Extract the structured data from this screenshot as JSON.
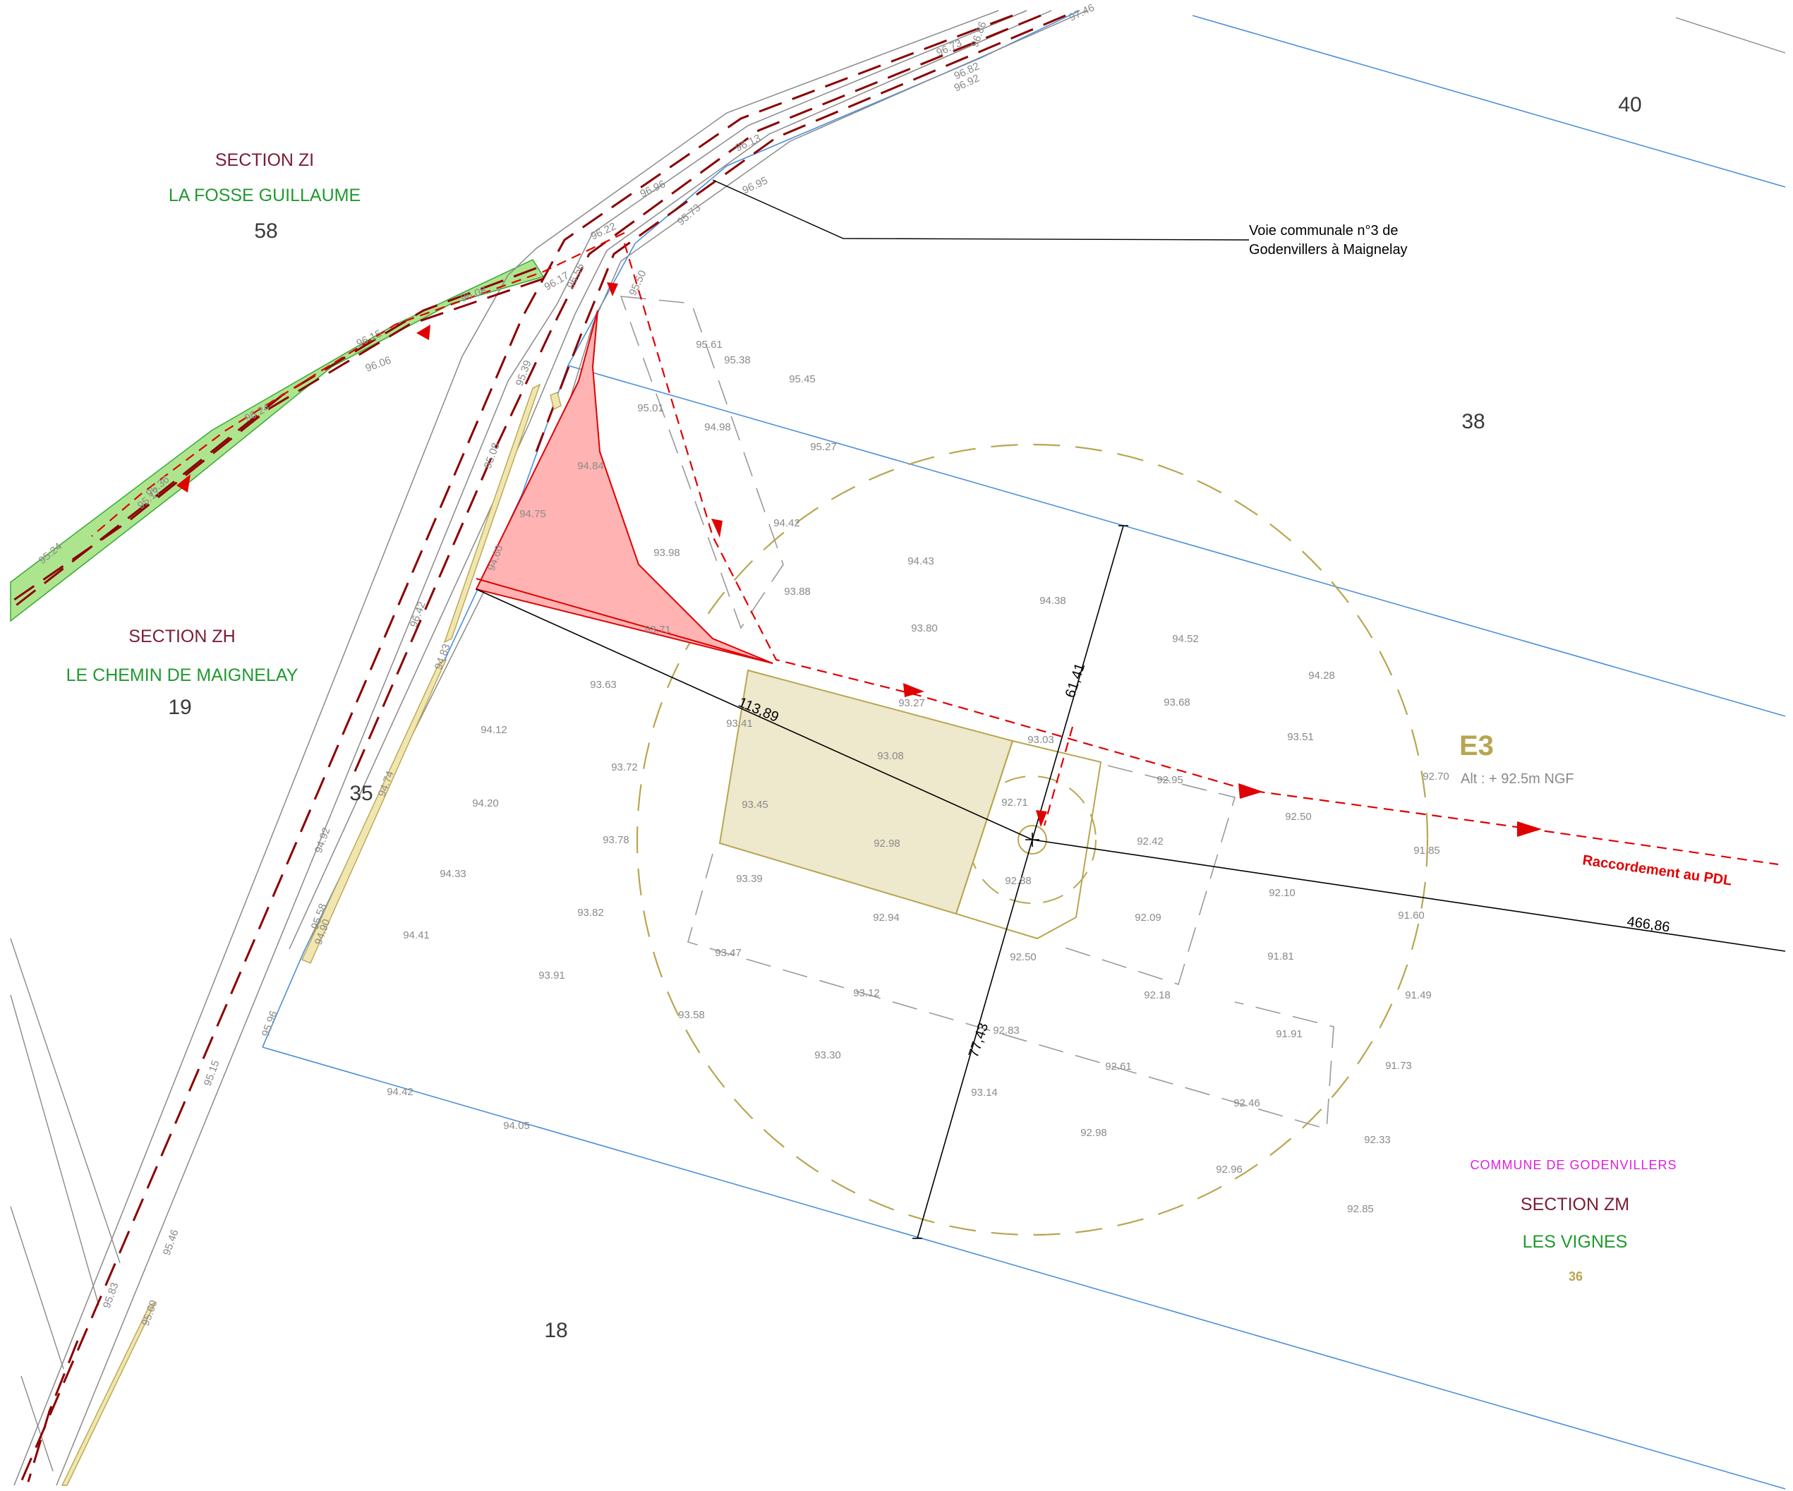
{
  "colors": {
    "section": "#7a1c34",
    "lieu_dit": "#1f9a2e",
    "commune": "#e020e0",
    "parcel_line": "#4a90d9",
    "road_dash": "#8b0000",
    "route": "#e00000",
    "platform": "#b7a650",
    "zone_red": "#ff9a9a",
    "green_strip": "#9fe07a"
  },
  "labels": {
    "section_zi": "SECTION ZI",
    "lieu_zi": "LA FOSSE GUILLAUME",
    "parcel_58": "58",
    "section_zh": "SECTION ZH",
    "lieu_zh": "LE CHEMIN DE MAIGNELAY",
    "parcel_19": "19",
    "parcel_35": "35",
    "parcel_40": "40",
    "parcel_38": "38",
    "parcel_18": "18",
    "road_line1": "Voie communale n°3 de",
    "road_line2": "Godenvillers à Maignelay",
    "turbine": "E3",
    "altitude": "Alt : + 92.5m NGF",
    "connection": "Raccordement au PDL",
    "commune": "COMMUNE DE GODENVILLERS",
    "section_zm": "SECTION ZM",
    "lieu_zm": "LES VIGNES",
    "parcel_36": "36"
  },
  "dimensions": {
    "d1": "113,89",
    "d2": "61,41",
    "d3": "77,43",
    "d4": "466,86"
  },
  "spot_heights": [
    "95.61",
    "95.38",
    "95.45",
    "95.01",
    "94.98",
    "95.27",
    "94.84",
    "94.75",
    "94.42",
    "93.98",
    "94.43",
    "94.38",
    "93.88",
    "93.80",
    "94.52",
    "94.28",
    "93.71",
    "93.63",
    "93.27",
    "93.41",
    "93.68",
    "94.12",
    "93.03",
    "93.51",
    "93.72",
    "93.08",
    "92.95",
    "92.70",
    "94.20",
    "93.45",
    "92.71",
    "92.50",
    "94.33",
    "93.78",
    "92.98",
    "92.42",
    "91.85",
    "93.39",
    "92.88",
    "93.82",
    "92.94",
    "92.09",
    "92.10",
    "91.60",
    "94.41",
    "93.47",
    "92.50",
    "91.81",
    "93.91",
    "93.12",
    "92.18",
    "91.49",
    "93.58",
    "92.83",
    "91.91",
    "93.30",
    "92.61",
    "91.73",
    "93.14",
    "92.46",
    "92.98",
    "92.33",
    "92.96",
    "92.85",
    "94.42",
    "94.05"
  ],
  "road_spots": [
    "96.73",
    "96.86",
    "96.82",
    "96.92",
    "97.46",
    "96.13",
    "96.96",
    "95.73",
    "96.95",
    "96.22",
    "95.50",
    "96.56",
    "96.08",
    "96.15",
    "96.06",
    "96.24",
    "96.36",
    "95.17",
    "95.24",
    "95.39",
    "95.08",
    "94.60",
    "96.42",
    "94.83",
    "94.74",
    "94.92",
    "94.90",
    "95.15",
    "95.96",
    "95.46",
    "95.83",
    "95.60",
    "96.17",
    "95.58"
  ]
}
